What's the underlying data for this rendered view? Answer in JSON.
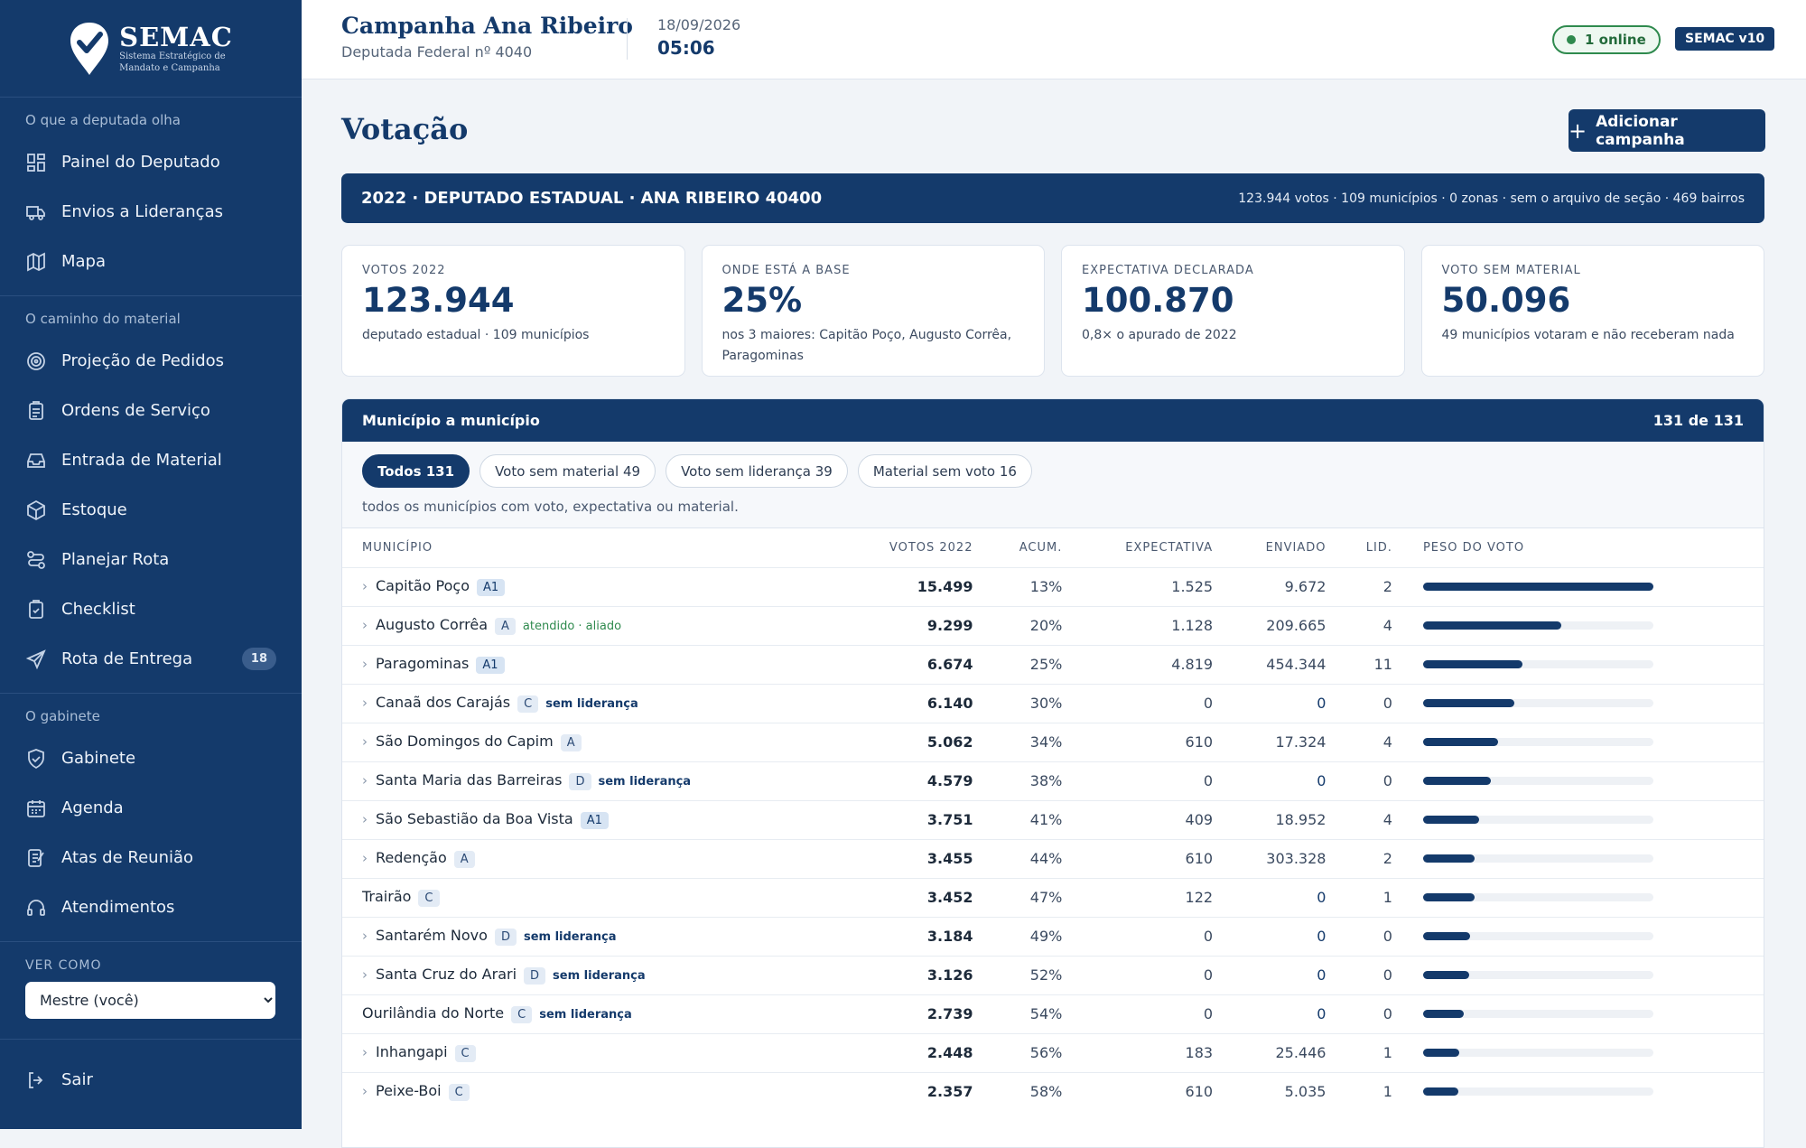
{
  "sidebar": {
    "logo_title": "SEMAC",
    "logo_subtitle": "Sistema Estratégico de Mandato e Campanha",
    "sections": [
      {
        "title": "O que a deputada olha",
        "items": [
          {
            "label": "Painel do Deputado",
            "icon": "dashboard-icon"
          },
          {
            "label": "Envios a Lideranças",
            "icon": "truck-icon"
          },
          {
            "label": "Mapa",
            "icon": "map-icon"
          }
        ]
      },
      {
        "title": "O caminho do material",
        "items": [
          {
            "label": "Projeção de Pedidos",
            "icon": "target-icon"
          },
          {
            "label": "Ordens de Serviço",
            "icon": "clipboard-icon"
          },
          {
            "label": "Entrada de Material",
            "icon": "inbox-icon"
          },
          {
            "label": "Estoque",
            "icon": "box-icon"
          },
          {
            "label": "Planejar Rota",
            "icon": "route-icon"
          },
          {
            "label": "Checklist",
            "icon": "checklist-icon"
          },
          {
            "label": "Rota de Entrega",
            "icon": "send-icon",
            "badge": "18"
          }
        ]
      },
      {
        "title": "O gabinete",
        "items": [
          {
            "label": "Gabinete",
            "icon": "shield-icon"
          },
          {
            "label": "Agenda",
            "icon": "calendar-icon"
          },
          {
            "label": "Atas de Reunião",
            "icon": "notes-icon"
          },
          {
            "label": "Atendimentos",
            "icon": "headset-icon"
          }
        ]
      }
    ],
    "ver_como_label": "VER COMO",
    "ver_como_value": "Mestre (você)",
    "logout_label": "Sair"
  },
  "topbar": {
    "campaign_title": "Campanha Ana Ribeiro",
    "campaign_subtitle": "Deputada Federal nº 4040",
    "date": "18/09/2026",
    "time": "05:06",
    "online": "1 online",
    "version": "SEMAC v10"
  },
  "page": {
    "title": "Votação",
    "add_button": "Adicionar campanha",
    "banner_left": "2022 · DEPUTADO ESTADUAL · ANA RIBEIRO 40400",
    "banner_right": "123.944 votos · 109 municípios · 0 zonas · sem o arquivo de seção · 469 bairros"
  },
  "cards": [
    {
      "label": "VOTOS 2022",
      "value": "123.944",
      "sub": "deputado estadual · 109 municípios"
    },
    {
      "label": "ONDE ESTÁ A BASE",
      "value": "25%",
      "sub": "nos 3 maiores: Capitão Poço, Augusto Corrêa, Paragominas"
    },
    {
      "label": "EXPECTATIVA DECLARADA",
      "value": "100.870",
      "sub": "0,8× o apurado de 2022"
    },
    {
      "label": "VOTO SEM MATERIAL",
      "value": "50.096",
      "sub": "49 municípios votaram e não receberam nada"
    }
  ],
  "panel": {
    "title": "Município a município",
    "count": "131 de 131",
    "chips": [
      {
        "label": "Todos 131",
        "active": true
      },
      {
        "label": "Voto sem material 49",
        "active": false
      },
      {
        "label": "Voto sem liderança 39",
        "active": false
      },
      {
        "label": "Material sem voto 16",
        "active": false
      }
    ],
    "description": "todos os municípios com voto, expectativa ou material.",
    "columns": [
      "MUNICÍPIO",
      "VOTOS 2022",
      "ACUM.",
      "EXPECTATIVA",
      "ENVIADO",
      "LID.",
      "PESO DO VOTO"
    ],
    "rows": [
      {
        "name": "Capitão Poço",
        "chev": true,
        "tier": "A1",
        "tag": "",
        "tagc": "",
        "votos": "15.499",
        "acum": "13%",
        "exp": "1.525",
        "env": "9.672",
        "lid": "2",
        "peso": 1.0
      },
      {
        "name": "Augusto Corrêa",
        "chev": true,
        "tier": "A",
        "tag": "atendido · aliado",
        "tagc": "green",
        "votos": "9.299",
        "acum": "20%",
        "exp": "1.128",
        "env": "209.665",
        "lid": "4",
        "peso": 0.6
      },
      {
        "name": "Paragominas",
        "chev": true,
        "tier": "A1",
        "tag": "",
        "tagc": "",
        "votos": "6.674",
        "acum": "25%",
        "exp": "4.819",
        "env": "454.344",
        "lid": "11",
        "peso": 0.43
      },
      {
        "name": "Canaã dos Carajás",
        "chev": true,
        "tier": "C",
        "tag": "sem liderança",
        "tagc": "dark",
        "votos": "6.140",
        "acum": "30%",
        "exp": "0",
        "env": "0",
        "lid": "0",
        "peso": 0.396
      },
      {
        "name": "São Domingos do Capim",
        "chev": true,
        "tier": "A",
        "tag": "",
        "tagc": "",
        "votos": "5.062",
        "acum": "34%",
        "exp": "610",
        "env": "17.324",
        "lid": "4",
        "peso": 0.327
      },
      {
        "name": "Santa Maria das Barreiras",
        "chev": true,
        "tier": "D",
        "tag": "sem liderança",
        "tagc": "dark",
        "votos": "4.579",
        "acum": "38%",
        "exp": "0",
        "env": "0",
        "lid": "0",
        "peso": 0.295
      },
      {
        "name": "São Sebastião da Boa Vista",
        "chev": true,
        "tier": "A1",
        "tag": "",
        "tagc": "",
        "votos": "3.751",
        "acum": "41%",
        "exp": "409",
        "env": "18.952",
        "lid": "4",
        "peso": 0.242
      },
      {
        "name": "Redenção",
        "chev": true,
        "tier": "A",
        "tag": "",
        "tagc": "",
        "votos": "3.455",
        "acum": "44%",
        "exp": "610",
        "env": "303.328",
        "lid": "2",
        "peso": 0.223
      },
      {
        "name": "Trairão",
        "chev": false,
        "tier": "C",
        "tag": "",
        "tagc": "",
        "votos": "3.452",
        "acum": "47%",
        "exp": "122",
        "env": "0",
        "lid": "1",
        "peso": 0.223
      },
      {
        "name": "Santarém Novo",
        "chev": true,
        "tier": "D",
        "tag": "sem liderança",
        "tagc": "dark",
        "votos": "3.184",
        "acum": "49%",
        "exp": "0",
        "env": "0",
        "lid": "0",
        "peso": 0.205
      },
      {
        "name": "Santa Cruz do Arari",
        "chev": true,
        "tier": "D",
        "tag": "sem liderança",
        "tagc": "dark",
        "votos": "3.126",
        "acum": "52%",
        "exp": "0",
        "env": "0",
        "lid": "0",
        "peso": 0.202
      },
      {
        "name": "Ourilândia do Norte",
        "chev": false,
        "tier": "C",
        "tag": "sem liderança",
        "tagc": "dark",
        "votos": "2.739",
        "acum": "54%",
        "exp": "0",
        "env": "0",
        "lid": "0",
        "peso": 0.177
      },
      {
        "name": "Inhangapi",
        "chev": true,
        "tier": "C",
        "tag": "",
        "tagc": "",
        "votos": "2.448",
        "acum": "56%",
        "exp": "183",
        "env": "25.446",
        "lid": "1",
        "peso": 0.158
      },
      {
        "name": "Peixe-Boi",
        "chev": true,
        "tier": "C",
        "tag": "",
        "tagc": "",
        "votos": "2.357",
        "acum": "58%",
        "exp": "610",
        "env": "5.035",
        "lid": "1",
        "peso": 0.152
      }
    ]
  },
  "colors": {
    "navy": "#143a6b",
    "online_green": "#2f8a4e"
  }
}
